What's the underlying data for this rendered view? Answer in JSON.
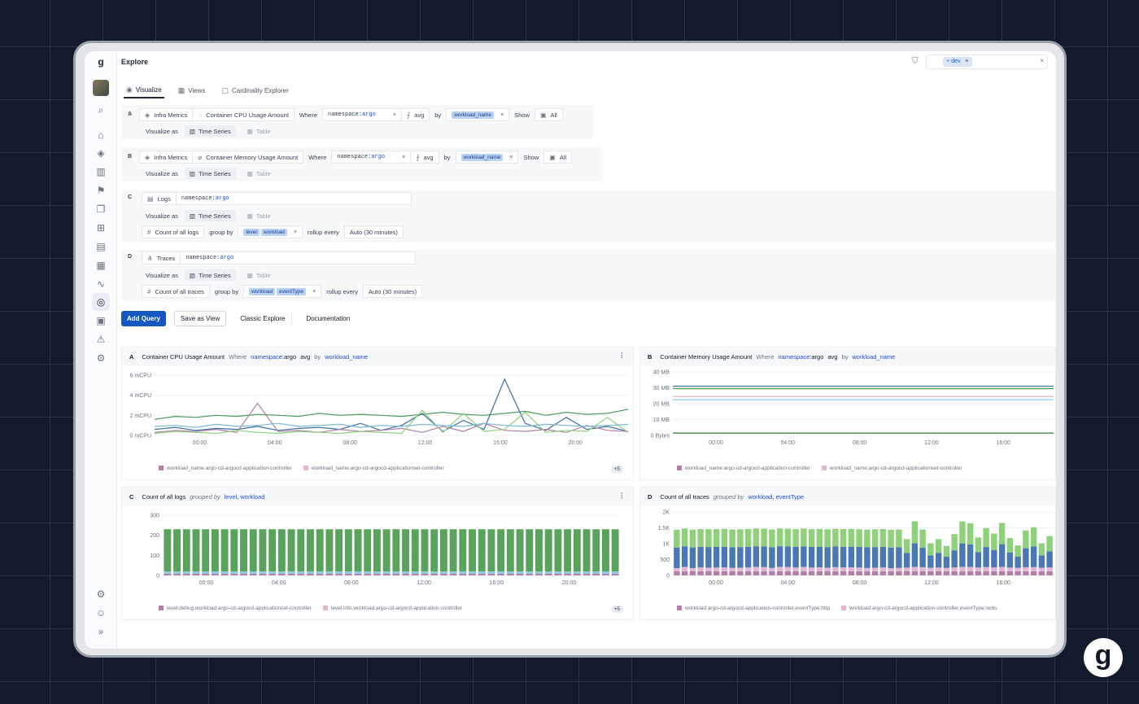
{
  "app": {
    "title": "Explore",
    "logo_letter": "g"
  },
  "filter": {
    "chip": "dev"
  },
  "tabs": [
    {
      "label": "Visualize",
      "icon": "eye-icon"
    },
    {
      "label": "Views",
      "icon": "table-icon"
    },
    {
      "label": "Cardinality Explorer",
      "icon": "clipboard-icon"
    }
  ],
  "queries": {
    "A": {
      "letter": "A",
      "source": "Infra Metrics",
      "metric": "Container CPU Usage Amount",
      "where": "Where",
      "ns_key": "namespace",
      "ns_val": "argo",
      "agg": "avg",
      "by": "by",
      "group": "workload_name",
      "show": "Show",
      "all": "All",
      "visualize_as": "Visualize as",
      "ts": "Time Series",
      "table": "Table"
    },
    "B": {
      "letter": "B",
      "source": "Infra Metrics",
      "metric": "Container Memory Usage Amount",
      "where": "Where",
      "ns_key": "namespace",
      "ns_val": "argo",
      "agg": "avg",
      "by": "by",
      "group": "workload_name",
      "show": "Show",
      "all": "All",
      "visualize_as": "Visualize as",
      "ts": "Time Series",
      "table": "Table"
    },
    "C": {
      "letter": "C",
      "source": "Logs",
      "ns_key": "namespace",
      "ns_val": "argo",
      "visualize_as": "Visualize as",
      "ts": "Time Series",
      "table": "Table",
      "count": "Count of all logs",
      "group_by": "group by",
      "g1": "level",
      "g2": "workload",
      "rollup": "rollup every",
      "rollup_val": "Auto (30 minutes)"
    },
    "D": {
      "letter": "D",
      "source": "Traces",
      "ns_key": "namespace",
      "ns_val": "argo",
      "visualize_as": "Visualize as",
      "ts": "Time Series",
      "table": "Table",
      "count": "Count of all traces",
      "group_by": "group by",
      "g1": "workload",
      "g2": "eventType",
      "rollup": "rollup every",
      "rollup_val": "Auto (30 minutes)"
    }
  },
  "actions": {
    "add_query": "Add Query",
    "save_view": "Save as View",
    "classic": "Classic Explore",
    "docs": "Documentation"
  },
  "panels": {
    "A": {
      "letter": "A",
      "title": "Container CPU Usage Amount",
      "where": "Where",
      "ns_key": "namespace",
      "ns_val": ":argo",
      "agg": "avg",
      "by": "by",
      "group": "workload_name",
      "legend1": "workload_name:argo-cd-argocd-application-controller",
      "legend2": "workload_name:argo-cd-argocd-applicationset-controller",
      "more": "+5"
    },
    "B": {
      "letter": "B",
      "title": "Container Memory Usage Amount",
      "where": "Where",
      "ns_key": "namespace",
      "ns_val": ":argo",
      "agg": "avg",
      "by": "by",
      "group": "workload_name",
      "legend1": "workload_name:argo-cd-argocd-application-controller",
      "legend2": "workload_name:argo-cd-argocd-applicationset-controller"
    },
    "C": {
      "letter": "C",
      "title": "Count of all logs",
      "grouped": "grouped by",
      "g1": "level",
      "g2": "workload",
      "legend1": "level:debug,workload:argo-cd-argocd-applicationset-controller",
      "legend2": "level:info,workload:argo-cd-argocd-application-controller",
      "more": "+5"
    },
    "D": {
      "letter": "D",
      "title": "Count of all traces",
      "grouped": "grouped by",
      "g1": "workload",
      "g2": "eventType",
      "legend1": "workload:argo-cd-argocd-application-controller,eventType:http",
      "legend2": "workload:argo-cd-argocd-application-controller,eventType:redis"
    }
  },
  "chart_data": [
    {
      "type": "line",
      "title": "Container CPU Usage Amount",
      "x_ticks": [
        "00:00",
        "04:00",
        "08:00",
        "12:00",
        "16:00",
        "20:00"
      ],
      "y_ticks": [
        "0 mCPU",
        "2 mCPU",
        "4 mCPU",
        "6 mCPU"
      ],
      "ylim": [
        0,
        6
      ],
      "series": [
        {
          "color": "#4a9d5b",
          "values": [
            1.6,
            1.9,
            1.8,
            2.0,
            1.9,
            2.1,
            2.0,
            1.9,
            2.2,
            2.0,
            2.1,
            2.0,
            1.9,
            2.1,
            2.3,
            2.1,
            2.0,
            2.2,
            2.4,
            2.0,
            2.3,
            2.1,
            2.2,
            2.6
          ]
        },
        {
          "color": "#3d6fa3",
          "values": [
            0.6,
            0.8,
            0.5,
            0.7,
            0.6,
            0.9,
            0.5,
            0.7,
            0.8,
            0.6,
            1.2,
            0.5,
            1.0,
            2.2,
            0.4,
            1.5,
            0.6,
            5.6,
            1.2,
            0.5,
            1.8,
            0.6,
            0.9,
            0.4
          ]
        },
        {
          "color": "#b37ea8",
          "values": [
            0.3,
            0.5,
            0.4,
            0.6,
            0.3,
            3.2,
            0.4,
            0.5,
            0.3,
            0.6,
            0.4,
            0.5,
            0.7,
            0.3,
            0.9,
            0.4,
            1.2,
            0.5,
            0.4,
            0.6,
            0.3,
            1.0,
            0.5,
            0.4
          ]
        },
        {
          "color": "#8fd07a",
          "values": [
            0.2,
            0.4,
            0.3,
            0.2,
            0.5,
            0.3,
            0.2,
            0.4,
            0.3,
            0.2,
            0.4,
            0.3,
            0.2,
            2.5,
            0.3,
            2.2,
            0.4,
            0.6,
            2.3,
            0.3,
            0.5,
            0.4,
            1.8,
            0.3
          ]
        },
        {
          "color": "#7ab8d8",
          "values": [
            0.9,
            1.0,
            0.8,
            1.1,
            0.9,
            1.0,
            1.2,
            0.9,
            1.0,
            1.1,
            0.8,
            1.0,
            0.9,
            1.1,
            1.0,
            0.9,
            1.2,
            1.0,
            0.9,
            1.1,
            1.0,
            0.9,
            1.0,
            1.1
          ]
        }
      ]
    },
    {
      "type": "line",
      "title": "Container Memory Usage Amount",
      "x_ticks": [
        "00:00",
        "04:00",
        "08:00",
        "12:00",
        "16:00"
      ],
      "y_ticks": [
        "0 Bytes",
        "10 MB",
        "20 MB",
        "30 MB",
        "40 MB"
      ],
      "ylim": [
        0,
        40
      ],
      "series": [
        {
          "color": "#3d6fa3",
          "values": [
            31,
            31,
            31,
            31,
            31,
            31,
            31,
            31,
            31,
            31,
            31,
            31
          ]
        },
        {
          "color": "#4a9d5b",
          "values": [
            29.5,
            29.5,
            29.5,
            29.5,
            29.5,
            29.5,
            29.5,
            29.5,
            29.5,
            29.5,
            29.5,
            29.5
          ]
        },
        {
          "color": "#d9a8c8",
          "values": [
            24.5,
            24.5,
            24.5,
            24.5,
            24.5,
            24.5,
            24.5,
            24.5,
            24.5,
            24.5,
            24.5,
            24.5
          ]
        },
        {
          "color": "#8ccbe3",
          "values": [
            22.5,
            22.5,
            22.5,
            22.5,
            22.5,
            22.5,
            22.5,
            22.5,
            22.5,
            22.5,
            22.5,
            22.5
          ]
        },
        {
          "color": "#2e7d32",
          "values": [
            1.5,
            1.5,
            1.5,
            1.5,
            1.5,
            1.5,
            1.5,
            1.5,
            1.5,
            1.5,
            1.5,
            1.5
          ]
        }
      ]
    },
    {
      "type": "bar",
      "stacked": true,
      "title": "Count of all logs",
      "x_ticks": [
        "00:00",
        "04:00",
        "08:00",
        "12:00",
        "16:00",
        "20:00"
      ],
      "y_ticks": [
        "0",
        "100",
        "200",
        "300"
      ],
      "ylim": [
        0,
        300
      ],
      "series": [
        {
          "color": "#b37ea8",
          "value_each": 8
        },
        {
          "color": "#8ccbe3",
          "value_each": 12
        },
        {
          "color": "#5aa35c",
          "value_each": 210
        }
      ],
      "bars": 48
    },
    {
      "type": "bar",
      "stacked": true,
      "title": "Count of all traces",
      "x_ticks": [
        "00:00",
        "04:00",
        "08:00",
        "12:00",
        "16:00"
      ],
      "y_ticks": [
        "0",
        "500",
        "1K",
        "1.5K",
        "2K"
      ],
      "ylim": [
        0,
        2000
      ],
      "bars": 48,
      "series": [
        {
          "color": "#b37ea8",
          "name_hint": "http"
        },
        {
          "color": "#e2b5d3",
          "name_hint": "redis"
        },
        {
          "color": "#4a78b5"
        },
        {
          "color": "#8fd07a"
        }
      ]
    }
  ]
}
